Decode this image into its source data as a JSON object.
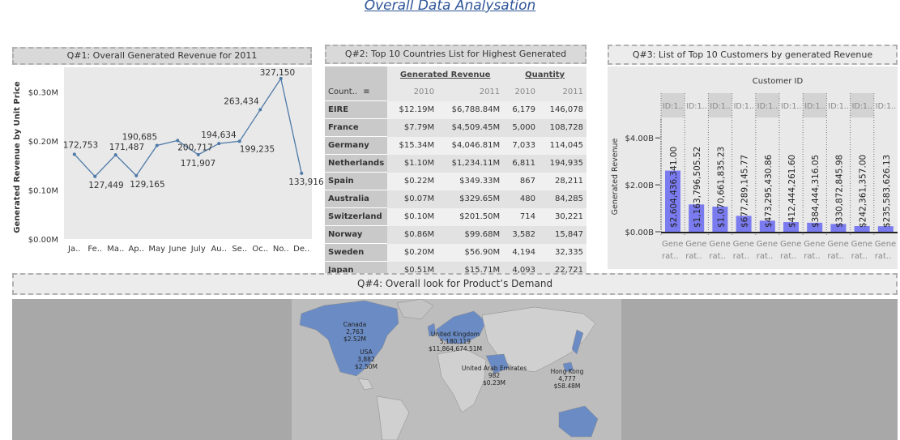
{
  "title": "Overall Data Analysation",
  "q1": {
    "header": "Q#1: Overall Generated Revenue for 2011",
    "chart_data": {
      "type": "line",
      "categories": [
        "Ja..",
        "Fe..",
        "Ma..",
        "Ap..",
        "May",
        "June",
        "July",
        "Au..",
        "Se..",
        "Oc..",
        "No..",
        "De.."
      ],
      "values": [
        172753,
        127449,
        171487,
        129165,
        190685,
        200717,
        171907,
        194634,
        199235,
        263434,
        327150,
        133916
      ],
      "labels": [
        "172,753",
        "127,449",
        "171,487",
        "129,165",
        "190,685",
        "200,717",
        "171,907",
        "194,634",
        "199,235",
        "263,434",
        "327,150",
        "133,916"
      ],
      "ylabel": "Generated Revenue by Unit Price",
      "yticks": [
        0,
        100000,
        200000,
        300000
      ],
      "ytick_labels": [
        "$0.00M",
        "$0.10M",
        "$0.20M",
        "$0.30M"
      ],
      "ylim": [
        0,
        350000
      ],
      "color": "#4e79a7"
    }
  },
  "q2": {
    "header": "Q#2: Top 10 Countries List for Highest Generated Revenue",
    "col_country": "Count..",
    "group_revenue": "Generated Revenue",
    "group_quantity": "Quantity",
    "years": [
      "2010",
      "2011",
      "2010",
      "2011"
    ],
    "rows": [
      {
        "country": "EIRE",
        "rev2010": "$12.19M",
        "rev2011": "$6,788.84M",
        "q2010": "6,179",
        "q2011": "146,078"
      },
      {
        "country": "France",
        "rev2010": "$7.79M",
        "rev2011": "$4,509.45M",
        "q2010": "5,000",
        "q2011": "108,728"
      },
      {
        "country": "Germany",
        "rev2010": "$15.34M",
        "rev2011": "$4,046.81M",
        "q2010": "7,033",
        "q2011": "114,045"
      },
      {
        "country": "Netherlands",
        "rev2010": "$1.10M",
        "rev2011": "$1,234.11M",
        "q2010": "6,811",
        "q2011": "194,935"
      },
      {
        "country": "Spain",
        "rev2010": "$0.22M",
        "rev2011": "$349.33M",
        "q2010": "867",
        "q2011": "28,211"
      },
      {
        "country": "Australia",
        "rev2010": "$0.07M",
        "rev2011": "$329.65M",
        "q2010": "480",
        "q2011": "84,285"
      },
      {
        "country": "Switzerland",
        "rev2010": "$0.10M",
        "rev2011": "$201.50M",
        "q2010": "714",
        "q2011": "30,221"
      },
      {
        "country": "Norway",
        "rev2010": "$0.86M",
        "rev2011": "$99.68M",
        "q2010": "3,582",
        "q2011": "15,847"
      },
      {
        "country": "Sweden",
        "rev2010": "$0.20M",
        "rev2011": "$56.90M",
        "q2010": "4,194",
        "q2011": "32,335"
      },
      {
        "country": "Japan",
        "rev2010": "$0.51M",
        "rev2011": "$15.71M",
        "q2010": "4,093",
        "q2011": "22,721"
      }
    ]
  },
  "q3": {
    "header": "Q#3: List of Top 10 Customers by generated Revenue",
    "chart_data": {
      "type": "bar",
      "column_header": "Customer ID",
      "column_label": "ID:1..",
      "bottom_label_1": "Gene",
      "bottom_label_2": "rat..",
      "values": [
        2604436341.0,
        1163796505.52,
        1070661835.23,
        677289145.77,
        473295430.86,
        412444261.6,
        384444316.05,
        330872845.98,
        242361357.0,
        235583626.13
      ],
      "labels": [
        "$2,604,436,341.00",
        "$1,163,796,505.52",
        "$1,070,661,835.23",
        "$677,289,145.77",
        "$473,295,430.86",
        "$412,444,261.60",
        "$384,444,316.05",
        "$330,872,845.98",
        "$242,361,357.00",
        "$235,583,626.13"
      ],
      "ylabel": "Generated Revenue",
      "yticks": [
        0,
        2000000000,
        4000000000
      ],
      "ytick_labels": [
        "$0.00B",
        "$2.00B",
        "$4.00B"
      ],
      "ylim": [
        0,
        4800000000
      ],
      "color": "#7b7bf0"
    }
  },
  "q4": {
    "header": "Q#4: Overall look for Product’s Demand",
    "labels": [
      {
        "name": "Canada",
        "quantity": "2,763",
        "revenue": "$2.52M"
      },
      {
        "name": "USA",
        "quantity": "3,882",
        "revenue": "$2.50M"
      },
      {
        "name": "United Kingdom",
        "quantity": "5,180,119",
        "revenue": "$11,864,674.51M"
      },
      {
        "name": "United Arab Emirates",
        "quantity": "982",
        "revenue": "$0.23M"
      },
      {
        "name": "Hong Kong",
        "quantity": "4,777",
        "revenue": "$58.48M"
      }
    ],
    "land_color": "#6a8bc4"
  }
}
